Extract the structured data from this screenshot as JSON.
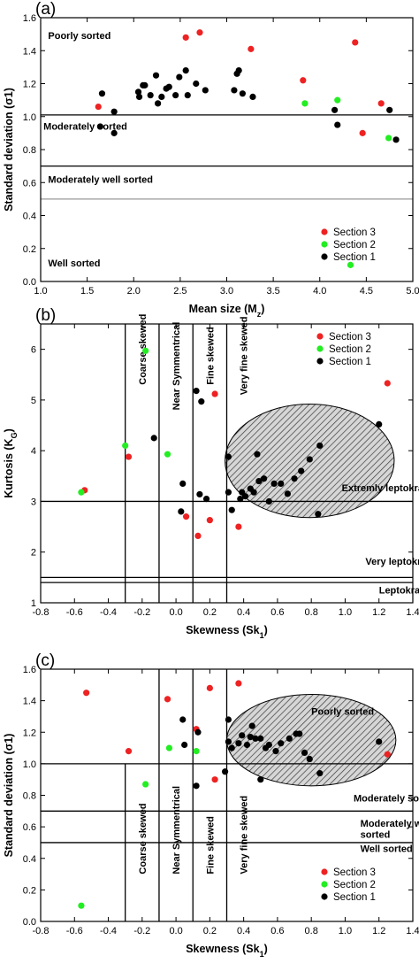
{
  "colors": {
    "section3": "#ee2222",
    "section2": "#22ee22",
    "section1": "#000000",
    "gray_line": "#9a9a9a"
  },
  "chart_data": [
    {
      "type": "scatter",
      "panel_label": "(a)",
      "xlabel": "Mean size (M",
      "xlabel_sub": "z",
      "xlabel_close": ")",
      "ylabel": "Standard deviation (σ1)",
      "xlim": [
        1.0,
        5.0
      ],
      "ylim": [
        0.0,
        1.6
      ],
      "xticks": [
        1.0,
        1.5,
        2.0,
        2.5,
        3.0,
        3.5,
        4.0,
        4.5,
        5.0
      ],
      "xtick_labels": [
        "1.0",
        "1.5",
        "2.0",
        "2.5",
        "3.0",
        "3.5",
        "4.0",
        "4.5",
        "5.0"
      ],
      "yticks": [
        0.0,
        0.2,
        0.4,
        0.6,
        0.8,
        1.0,
        1.2,
        1.4,
        1.6
      ],
      "ytick_labels": [
        "0.0",
        "0.2",
        "0.4",
        "0.6",
        "0.8",
        "1.0",
        "1.2",
        "1.4",
        "1.6"
      ],
      "hlines": [
        {
          "y": 1.01,
          "color": "#000000"
        },
        {
          "y": 0.7,
          "color": "#000000"
        },
        {
          "y": 0.5,
          "color": "#9a9a9a"
        }
      ],
      "vlines": [],
      "zone_labels": [
        {
          "text": "Poorly sorted",
          "x": 1.08,
          "y": 1.47,
          "rotate": false
        },
        {
          "text": "Moderately sorted",
          "x": 1.03,
          "y": 0.92,
          "rotate": false
        },
        {
          "text": "Moderately well sorted",
          "x": 1.08,
          "y": 0.6,
          "rotate": false
        },
        {
          "text": "Well sorted",
          "x": 1.08,
          "y": 0.09,
          "rotate": false
        }
      ],
      "ellipse": null,
      "legend": {
        "position": "bottom-right",
        "entries": [
          "Section 3",
          "Section 2",
          "Section 1"
        ]
      },
      "series": [
        {
          "name": "Section 3",
          "color_key": "section3",
          "points": [
            [
              1.62,
              1.06
            ],
            [
              2.56,
              1.48
            ],
            [
              2.71,
              1.51
            ],
            [
              3.26,
              1.41
            ],
            [
              3.82,
              1.22
            ],
            [
              4.38,
              1.45
            ],
            [
              4.46,
              0.9
            ],
            [
              4.66,
              1.08
            ]
          ]
        },
        {
          "name": "Section 2",
          "color_key": "section2",
          "points": [
            [
              3.84,
              1.08
            ],
            [
              4.19,
              1.1
            ],
            [
              4.33,
              0.1
            ],
            [
              4.74,
              0.87
            ]
          ]
        },
        {
          "name": "Section 1",
          "color_key": "section1",
          "points": [
            [
              1.64,
              0.94
            ],
            [
              1.66,
              1.14
            ],
            [
              1.79,
              1.03
            ],
            [
              1.79,
              0.9
            ],
            [
              2.05,
              1.15
            ],
            [
              2.06,
              1.12
            ],
            [
              2.1,
              1.19
            ],
            [
              2.12,
              1.19
            ],
            [
              2.18,
              1.13
            ],
            [
              2.24,
              1.25
            ],
            [
              2.26,
              1.08
            ],
            [
              2.3,
              1.12
            ],
            [
              2.35,
              1.17
            ],
            [
              2.38,
              1.18
            ],
            [
              2.45,
              1.13
            ],
            [
              2.49,
              1.24
            ],
            [
              2.56,
              1.28
            ],
            [
              2.58,
              1.13
            ],
            [
              2.67,
              1.2
            ],
            [
              2.77,
              1.16
            ],
            [
              3.08,
              1.16
            ],
            [
              3.11,
              1.26
            ],
            [
              3.13,
              1.28
            ],
            [
              3.17,
              1.14
            ],
            [
              3.28,
              1.12
            ],
            [
              4.16,
              1.04
            ],
            [
              4.19,
              0.95
            ],
            [
              4.75,
              1.04
            ],
            [
              4.82,
              0.86
            ]
          ]
        }
      ]
    },
    {
      "type": "scatter",
      "panel_label": "(b)",
      "xlabel": "Skewness (Sk",
      "xlabel_sub": "1",
      "xlabel_close": ")",
      "ylabel": "Kurtosis (K",
      "ylabel_sub": "G",
      "ylabel_close": ")",
      "xlim": [
        -0.8,
        1.4
      ],
      "ylim": [
        1.0,
        6.5
      ],
      "xticks": [
        -0.8,
        -0.6,
        -0.4,
        -0.2,
        0.0,
        0.2,
        0.4,
        0.6,
        0.8,
        1.0,
        1.2,
        1.4
      ],
      "xtick_labels": [
        "-0.8",
        "-0.6",
        "-0.4",
        "-0.2",
        "0.0",
        "0.2",
        "0.4",
        "0.6",
        "0.8",
        "1.0",
        "1.2",
        "1.4"
      ],
      "yticks": [
        1,
        2,
        3,
        4,
        5,
        6
      ],
      "ytick_labels": [
        "1",
        "2",
        "3",
        "4",
        "5",
        "6"
      ],
      "hlines": [
        {
          "y": 3.0,
          "color": "#000000"
        },
        {
          "y": 1.5,
          "color": "#000000"
        },
        {
          "y": 1.4,
          "color": "#000000"
        }
      ],
      "vlines": [
        {
          "x": -0.3,
          "color": "#000000"
        },
        {
          "x": -0.1,
          "color": "#000000"
        },
        {
          "x": 0.1,
          "color": "#000000"
        },
        {
          "x": 0.3,
          "color": "#000000"
        }
      ],
      "zone_labels": [
        {
          "text": "Coarse skewed",
          "x": -0.2,
          "y": 5.3,
          "rotate": true
        },
        {
          "text": "Near Symmentrical",
          "x": 0.0,
          "y": 4.8,
          "rotate": true
        },
        {
          "text": "Fine skewed",
          "x": 0.2,
          "y": 5.3,
          "rotate": true
        },
        {
          "text": "Very fine skewed",
          "x": 0.4,
          "y": 5.1,
          "rotate": true
        },
        {
          "text": "Extremly leptokratic",
          "x": 0.98,
          "y": 3.2,
          "rotate": false
        },
        {
          "text": "Very leptokratic",
          "x": 1.12,
          "y": 1.75,
          "rotate": false
        },
        {
          "text": "Leptokratic",
          "x": 1.2,
          "y": 1.18,
          "rotate": false
        }
      ],
      "ellipse": {
        "cx": 0.79,
        "cy": 3.8,
        "rx": 0.5,
        "ry": 1.12
      },
      "legend": {
        "position": "top-right",
        "entries": [
          "Section 3",
          "Section 2",
          "Section 1"
        ]
      },
      "series": [
        {
          "name": "Section 3",
          "color_key": "section3",
          "points": [
            [
              -0.54,
              3.22
            ],
            [
              -0.28,
              3.88
            ],
            [
              0.06,
              2.7
            ],
            [
              0.13,
              2.32
            ],
            [
              0.2,
              2.63
            ],
            [
              0.23,
              5.12
            ],
            [
              0.37,
              2.5
            ],
            [
              1.25,
              5.33
            ]
          ]
        },
        {
          "name": "Section 2",
          "color_key": "section2",
          "points": [
            [
              -0.56,
              3.18
            ],
            [
              -0.3,
              4.1
            ],
            [
              -0.18,
              5.97
            ],
            [
              -0.05,
              3.93
            ]
          ]
        },
        {
          "name": "Section 1",
          "color_key": "section1",
          "points": [
            [
              -0.13,
              4.25
            ],
            [
              0.03,
              2.8
            ],
            [
              0.04,
              3.35
            ],
            [
              0.12,
              5.18
            ],
            [
              0.15,
              4.97
            ],
            [
              0.14,
              3.14
            ],
            [
              0.18,
              3.05
            ],
            [
              0.31,
              3.88
            ],
            [
              0.31,
              3.18
            ],
            [
              0.33,
              2.83
            ],
            [
              0.38,
              3.05
            ],
            [
              0.39,
              3.18
            ],
            [
              0.41,
              3.1
            ],
            [
              0.44,
              3.25
            ],
            [
              0.46,
              3.18
            ],
            [
              0.48,
              3.93
            ],
            [
              0.49,
              3.4
            ],
            [
              0.52,
              3.45
            ],
            [
              0.55,
              3.0
            ],
            [
              0.58,
              3.35
            ],
            [
              0.62,
              3.35
            ],
            [
              0.66,
              3.15
            ],
            [
              0.7,
              3.45
            ],
            [
              0.74,
              3.6
            ],
            [
              0.79,
              3.83
            ],
            [
              0.84,
              2.75
            ],
            [
              0.85,
              4.1
            ],
            [
              1.2,
              4.52
            ]
          ]
        }
      ]
    },
    {
      "type": "scatter",
      "panel_label": "(c)",
      "xlabel": "Skewness (Sk",
      "xlabel_sub": "1",
      "xlabel_close": ")",
      "ylabel": "Standard deviation (σ1)",
      "xlim": [
        -0.8,
        1.4
      ],
      "ylim": [
        0.0,
        1.6
      ],
      "xticks": [
        -0.8,
        -0.6,
        -0.4,
        -0.2,
        0.0,
        0.2,
        0.4,
        0.6,
        0.8,
        1.0,
        1.2,
        1.4
      ],
      "xtick_labels": [
        "-0.8",
        "-0.6",
        "-0.4",
        "-0.2",
        "0.0",
        "0.2",
        "0.4",
        "0.6",
        "0.8",
        "1.0",
        "1.2",
        "1.4"
      ],
      "yticks": [
        0.0,
        0.2,
        0.4,
        0.6,
        0.8,
        1.0,
        1.2,
        1.4,
        1.6
      ],
      "ytick_labels": [
        "0.0",
        "0.2",
        "0.4",
        "0.6",
        "0.8",
        "1.0",
        "1.2",
        "1.4",
        "1.6"
      ],
      "hlines": [
        {
          "y": 1.0,
          "color": "#000000"
        },
        {
          "y": 0.7,
          "color": "#000000"
        },
        {
          "y": 0.5,
          "color": "#000000"
        }
      ],
      "vlines": [
        {
          "x": -0.3,
          "color": "#000000",
          "y_max": 1.0
        },
        {
          "x": -0.1,
          "color": "#000000"
        },
        {
          "x": 0.1,
          "color": "#000000"
        },
        {
          "x": 0.3,
          "color": "#000000"
        }
      ],
      "zone_labels": [
        {
          "text": "Poorly sorted",
          "x": 0.8,
          "y": 1.31,
          "rotate": false
        },
        {
          "text": "Moderately sorted",
          "x": 1.05,
          "y": 0.76,
          "rotate": false
        },
        {
          "text": "Moderately well",
          "x": 1.09,
          "y": 0.6,
          "rotate": false
        },
        {
          "text": "sorted",
          "x": 1.09,
          "y": 0.53,
          "rotate": false
        },
        {
          "text": "Well sorted",
          "x": 1.09,
          "y": 0.44,
          "rotate": false
        },
        {
          "text": "Coarse skewed",
          "x": -0.2,
          "y": 0.3,
          "rotate": true
        },
        {
          "text": "Near Symmentrical",
          "x": 0.0,
          "y": 0.3,
          "rotate": true
        },
        {
          "text": "Fine skewed",
          "x": 0.2,
          "y": 0.3,
          "rotate": true
        },
        {
          "text": "Very fine skewed",
          "x": 0.4,
          "y": 0.3,
          "rotate": true
        }
      ],
      "ellipse": {
        "cx": 0.8,
        "cy": 1.15,
        "rx": 0.5,
        "ry": 0.29
      },
      "legend": {
        "position": "bottom-right",
        "entries": [
          "Section 3",
          "Section 2",
          "Section 1"
        ]
      },
      "series": [
        {
          "name": "Section 3",
          "color_key": "section3",
          "points": [
            [
              -0.53,
              1.45
            ],
            [
              -0.28,
              1.08
            ],
            [
              -0.05,
              1.41
            ],
            [
              0.12,
              1.22
            ],
            [
              0.2,
              1.48
            ],
            [
              0.23,
              0.9
            ],
            [
              0.37,
              1.51
            ],
            [
              1.25,
              1.06
            ]
          ]
        },
        {
          "name": "Section 2",
          "color_key": "section2",
          "points": [
            [
              -0.56,
              0.1
            ],
            [
              -0.18,
              0.87
            ],
            [
              -0.04,
              1.1
            ],
            [
              0.12,
              1.08
            ]
          ]
        },
        {
          "name": "Section 1",
          "color_key": "section1",
          "points": [
            [
              0.04,
              1.28
            ],
            [
              0.05,
              1.12
            ],
            [
              0.12,
              0.86
            ],
            [
              0.13,
              1.2
            ],
            [
              0.29,
              0.95
            ],
            [
              0.31,
              1.14
            ],
            [
              0.31,
              1.28
            ],
            [
              0.33,
              1.1
            ],
            [
              0.37,
              1.13
            ],
            [
              0.39,
              1.18
            ],
            [
              0.42,
              1.12
            ],
            [
              0.44,
              1.17
            ],
            [
              0.45,
              1.24
            ],
            [
              0.47,
              1.16
            ],
            [
              0.5,
              1.16
            ],
            [
              0.5,
              0.9
            ],
            [
              0.53,
              1.1
            ],
            [
              0.55,
              1.12
            ],
            [
              0.59,
              1.08
            ],
            [
              0.62,
              1.13
            ],
            [
              0.67,
              1.16
            ],
            [
              0.71,
              1.19
            ],
            [
              0.73,
              1.19
            ],
            [
              0.76,
              1.07
            ],
            [
              0.79,
              1.03
            ],
            [
              0.85,
              0.94
            ],
            [
              1.2,
              1.14
            ]
          ]
        }
      ]
    }
  ]
}
